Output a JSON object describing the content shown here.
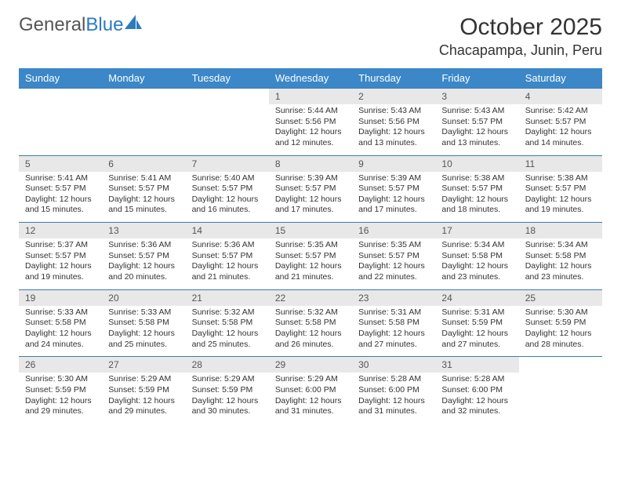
{
  "logo": {
    "text1": "General",
    "text2": "Blue"
  },
  "title": "October 2025",
  "location": "Chacapampa, Junin, Peru",
  "colors": {
    "header_bg": "#3b87c8",
    "header_text": "#ffffff",
    "daynum_bg": "#e8e8e8",
    "border": "#3b7bb0",
    "logo_blue": "#2b7bbf"
  },
  "weekdays": [
    "Sunday",
    "Monday",
    "Tuesday",
    "Wednesday",
    "Thursday",
    "Friday",
    "Saturday"
  ],
  "weeks": [
    [
      null,
      null,
      null,
      {
        "n": "1",
        "sr": "5:44 AM",
        "ss": "5:56 PM",
        "dh": "12",
        "dm": "12"
      },
      {
        "n": "2",
        "sr": "5:43 AM",
        "ss": "5:56 PM",
        "dh": "12",
        "dm": "13"
      },
      {
        "n": "3",
        "sr": "5:43 AM",
        "ss": "5:57 PM",
        "dh": "12",
        "dm": "13"
      },
      {
        "n": "4",
        "sr": "5:42 AM",
        "ss": "5:57 PM",
        "dh": "12",
        "dm": "14"
      }
    ],
    [
      {
        "n": "5",
        "sr": "5:41 AM",
        "ss": "5:57 PM",
        "dh": "12",
        "dm": "15"
      },
      {
        "n": "6",
        "sr": "5:41 AM",
        "ss": "5:57 PM",
        "dh": "12",
        "dm": "15"
      },
      {
        "n": "7",
        "sr": "5:40 AM",
        "ss": "5:57 PM",
        "dh": "12",
        "dm": "16"
      },
      {
        "n": "8",
        "sr": "5:39 AM",
        "ss": "5:57 PM",
        "dh": "12",
        "dm": "17"
      },
      {
        "n": "9",
        "sr": "5:39 AM",
        "ss": "5:57 PM",
        "dh": "12",
        "dm": "17"
      },
      {
        "n": "10",
        "sr": "5:38 AM",
        "ss": "5:57 PM",
        "dh": "12",
        "dm": "18"
      },
      {
        "n": "11",
        "sr": "5:38 AM",
        "ss": "5:57 PM",
        "dh": "12",
        "dm": "19"
      }
    ],
    [
      {
        "n": "12",
        "sr": "5:37 AM",
        "ss": "5:57 PM",
        "dh": "12",
        "dm": "19"
      },
      {
        "n": "13",
        "sr": "5:36 AM",
        "ss": "5:57 PM",
        "dh": "12",
        "dm": "20"
      },
      {
        "n": "14",
        "sr": "5:36 AM",
        "ss": "5:57 PM",
        "dh": "12",
        "dm": "21"
      },
      {
        "n": "15",
        "sr": "5:35 AM",
        "ss": "5:57 PM",
        "dh": "12",
        "dm": "21"
      },
      {
        "n": "16",
        "sr": "5:35 AM",
        "ss": "5:57 PM",
        "dh": "12",
        "dm": "22"
      },
      {
        "n": "17",
        "sr": "5:34 AM",
        "ss": "5:58 PM",
        "dh": "12",
        "dm": "23"
      },
      {
        "n": "18",
        "sr": "5:34 AM",
        "ss": "5:58 PM",
        "dh": "12",
        "dm": "23"
      }
    ],
    [
      {
        "n": "19",
        "sr": "5:33 AM",
        "ss": "5:58 PM",
        "dh": "12",
        "dm": "24"
      },
      {
        "n": "20",
        "sr": "5:33 AM",
        "ss": "5:58 PM",
        "dh": "12",
        "dm": "25"
      },
      {
        "n": "21",
        "sr": "5:32 AM",
        "ss": "5:58 PM",
        "dh": "12",
        "dm": "25"
      },
      {
        "n": "22",
        "sr": "5:32 AM",
        "ss": "5:58 PM",
        "dh": "12",
        "dm": "26"
      },
      {
        "n": "23",
        "sr": "5:31 AM",
        "ss": "5:58 PM",
        "dh": "12",
        "dm": "27"
      },
      {
        "n": "24",
        "sr": "5:31 AM",
        "ss": "5:59 PM",
        "dh": "12",
        "dm": "27"
      },
      {
        "n": "25",
        "sr": "5:30 AM",
        "ss": "5:59 PM",
        "dh": "12",
        "dm": "28"
      }
    ],
    [
      {
        "n": "26",
        "sr": "5:30 AM",
        "ss": "5:59 PM",
        "dh": "12",
        "dm": "29"
      },
      {
        "n": "27",
        "sr": "5:29 AM",
        "ss": "5:59 PM",
        "dh": "12",
        "dm": "29"
      },
      {
        "n": "28",
        "sr": "5:29 AM",
        "ss": "5:59 PM",
        "dh": "12",
        "dm": "30"
      },
      {
        "n": "29",
        "sr": "5:29 AM",
        "ss": "6:00 PM",
        "dh": "12",
        "dm": "31"
      },
      {
        "n": "30",
        "sr": "5:28 AM",
        "ss": "6:00 PM",
        "dh": "12",
        "dm": "31"
      },
      {
        "n": "31",
        "sr": "5:28 AM",
        "ss": "6:00 PM",
        "dh": "12",
        "dm": "32"
      },
      null
    ]
  ],
  "labels": {
    "sunrise": "Sunrise:",
    "sunset": "Sunset:",
    "daylight_prefix": "Daylight:",
    "hours_word": "hours",
    "and_word": "and",
    "minutes_word": "minutes."
  }
}
